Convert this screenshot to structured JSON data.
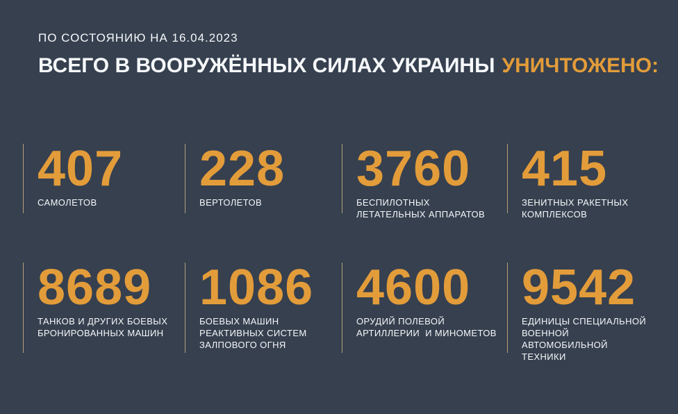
{
  "colors": {
    "background": "#36404F",
    "accent": "#E39C3A",
    "divider": "#B59E7C",
    "text": "#F6F8FA"
  },
  "header": {
    "date_line": "ПО СОСТОЯНИЮ НА 16.04.2023",
    "title_main": "ВСЕГО В ВООРУЖЁННЫХ СИЛАХ УКРАИНЫ",
    "title_accent": "УНИЧТОЖЕНО:"
  },
  "stats": [
    {
      "value": "407",
      "label": "САМОЛЕТОВ"
    },
    {
      "value": "228",
      "label": "ВЕРТОЛЕТОВ"
    },
    {
      "value": "3760",
      "label": "БЕСПИЛОТНЫХ\nЛЕТАТЕЛЬНЫХ АППАРАТОВ"
    },
    {
      "value": "415",
      "label": "ЗЕНИТНЫХ РАКЕТНЫХ\nКОМПЛЕКСОВ"
    },
    {
      "value": "8689",
      "label": "ТАНКОВ И ДРУГИХ БОЕВЫХ\nБРОНИРОВАННЫХ МАШИН"
    },
    {
      "value": "1086",
      "label": "БОЕВЫХ МАШИН\nРЕАКТИВНЫХ СИСТЕМ\nЗАЛПОВОГО ОГНЯ"
    },
    {
      "value": "4600",
      "label": "ОРУДИЙ ПОЛЕВОЙ\nАРТИЛЛЕРИИ  И МИНОМЕТОВ"
    },
    {
      "value": "9542",
      "label": "ЕДИНИЦЫ СПЕЦИАЛЬНОЙ\nВОЕННОЙ АВТОМОБИЛЬНОЙ\nТЕХНИКИ"
    }
  ],
  "chart_data": {
    "type": "table",
    "title": "ВСЕГО В ВООРУЖЁННЫХ СИЛАХ УКРАИНЫ УНИЧТОЖЕНО:",
    "subtitle": "ПО СОСТОЯНИЮ НА 16.04.2023",
    "categories": [
      "САМОЛЕТОВ",
      "ВЕРТОЛЕТОВ",
      "БЕСПИЛОТНЫХ ЛЕТАТЕЛЬНЫХ АППАРАТОВ",
      "ЗЕНИТНЫХ РАКЕТНЫХ КОМПЛЕКСОВ",
      "ТАНКОВ И ДРУГИХ БОЕВЫХ БРОНИРОВАННЫХ МАШИН",
      "БОЕВЫХ МАШИН РЕАКТИВНЫХ СИСТЕМ ЗАЛПОВОГО ОГНЯ",
      "ОРУДИЙ ПОЛЕВОЙ АРТИЛЛЕРИИ И МИНОМЕТОВ",
      "ЕДИНИЦЫ СПЕЦИАЛЬНОЙ ВОЕННОЙ АВТОМОБИЛЬНОЙ ТЕХНИКИ"
    ],
    "values": [
      407,
      228,
      3760,
      415,
      8689,
      1086,
      4600,
      9542
    ],
    "layout": "2 rows x 4 columns grid, numbers above labels, vertical divider left of each cell"
  }
}
